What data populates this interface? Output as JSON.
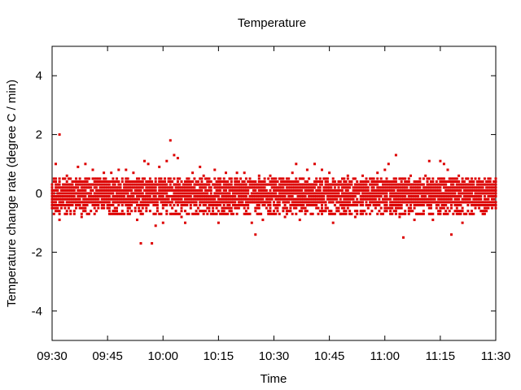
{
  "chart_data": {
    "type": "scatter",
    "title": "Temperature",
    "xlabel": "Time",
    "ylabel": "Temperature change rate (degree C / min)",
    "x_range": [
      "09:30",
      "11:30"
    ],
    "ylim": [
      -5,
      5
    ],
    "x_ticks": [
      "09:30",
      "09:45",
      "10:00",
      "10:15",
      "10:30",
      "10:45",
      "11:00",
      "11:15",
      "11:30"
    ],
    "y_ticks": [
      -4,
      -2,
      0,
      2,
      4
    ],
    "grid": false,
    "marker_color": "#dd0000",
    "series": [
      {
        "points": [
          [
            "09:31",
            1.0
          ],
          [
            "09:32",
            2.0
          ],
          [
            "09:32",
            -0.9
          ],
          [
            "09:34",
            0.6
          ],
          [
            "09:37",
            0.9
          ],
          [
            "09:39",
            1.0
          ],
          [
            "09:41",
            0.8
          ],
          [
            "09:38",
            -0.8
          ],
          [
            "09:44",
            0.7
          ],
          [
            "09:46",
            0.7
          ],
          [
            "09:48",
            0.8
          ],
          [
            "09:50",
            0.8
          ],
          [
            "09:52",
            0.7
          ],
          [
            "09:47",
            -0.7
          ],
          [
            "09:53",
            -0.9
          ],
          [
            "09:54",
            -1.7
          ],
          [
            "09:55",
            1.1
          ],
          [
            "09:56",
            1.0
          ],
          [
            "09:57",
            -1.7
          ],
          [
            "09:58",
            -1.1
          ],
          [
            "09:59",
            0.9
          ],
          [
            "10:00",
            -1.0
          ],
          [
            "10:01",
            1.1
          ],
          [
            "10:02",
            1.8
          ],
          [
            "10:03",
            1.3
          ],
          [
            "10:04",
            1.2
          ],
          [
            "10:05",
            -0.8
          ],
          [
            "10:06",
            -1.0
          ],
          [
            "10:08",
            0.7
          ],
          [
            "10:10",
            0.9
          ],
          [
            "10:11",
            0.6
          ],
          [
            "10:14",
            0.8
          ],
          [
            "10:15",
            -1.0
          ],
          [
            "10:17",
            0.7
          ],
          [
            "10:20",
            0.7
          ],
          [
            "10:22",
            0.7
          ],
          [
            "10:24",
            -1.0
          ],
          [
            "10:25",
            -1.4
          ],
          [
            "10:26",
            0.6
          ],
          [
            "10:27",
            -0.9
          ],
          [
            "10:29",
            0.6
          ],
          [
            "10:33",
            -0.8
          ],
          [
            "10:35",
            0.7
          ],
          [
            "10:36",
            1.0
          ],
          [
            "10:37",
            -0.9
          ],
          [
            "10:39",
            0.8
          ],
          [
            "10:41",
            1.0
          ],
          [
            "10:43",
            0.8
          ],
          [
            "10:45",
            0.7
          ],
          [
            "10:46",
            -1.0
          ],
          [
            "10:48",
            -0.7
          ],
          [
            "10:50",
            0.6
          ],
          [
            "10:52",
            -0.8
          ],
          [
            "10:54",
            0.6
          ],
          [
            "10:58",
            0.7
          ],
          [
            "11:00",
            0.8
          ],
          [
            "11:01",
            1.0
          ],
          [
            "11:03",
            1.3
          ],
          [
            "11:04",
            -0.8
          ],
          [
            "11:05",
            -1.5
          ],
          [
            "11:07",
            0.6
          ],
          [
            "11:08",
            -0.9
          ],
          [
            "11:11",
            0.6
          ],
          [
            "11:12",
            1.1
          ],
          [
            "11:13",
            -0.9
          ],
          [
            "11:15",
            1.1
          ],
          [
            "11:16",
            1.0
          ],
          [
            "11:17",
            0.8
          ],
          [
            "11:18",
            -1.4
          ],
          [
            "11:20",
            0.6
          ],
          [
            "11:21",
            -1.0
          ],
          [
            "11:25",
            0.4
          ],
          [
            "11:28",
            0.4
          ],
          [
            "11:30",
            0.4
          ]
        ]
      }
    ],
    "dense_band": {
      "from": "09:30",
      "to": "11:30",
      "y_min": -0.7,
      "y_max": 0.5,
      "note_values_per_minute": [
        -0.7,
        -0.6,
        -0.5,
        -0.4,
        -0.3,
        -0.2,
        -0.1,
        0.0,
        0.1,
        0.2,
        0.3,
        0.4,
        0.5
      ]
    }
  }
}
